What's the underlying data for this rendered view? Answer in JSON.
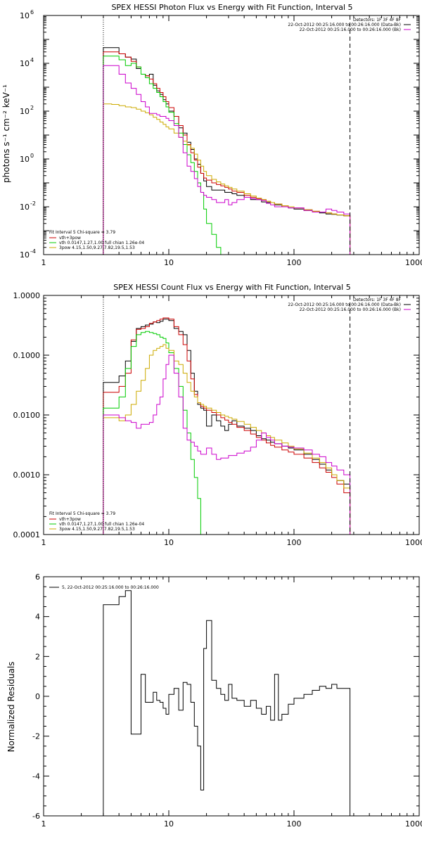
{
  "chart_data": [
    {
      "type": "line",
      "title": "SPEX HESSI Photon Flux vs Energy with Fit Function, Interval 5",
      "xlabel": "",
      "ylabel": "photons s⁻¹ cm⁻² keV⁻¹",
      "xscale": "log",
      "yscale": "log",
      "xlim": [
        1,
        1000
      ],
      "ylim": [
        0.0001,
        1000000
      ],
      "xticks": [
        1,
        10,
        100,
        1000
      ],
      "xtick_labels": [
        "1",
        "10",
        "100",
        "1000"
      ],
      "yticks": [
        0.0001,
        0.01,
        1,
        100,
        10000,
        1000000
      ],
      "ytick_labels": [
        {
          "base": "10",
          "exp": "-4"
        },
        {
          "base": "10",
          "exp": "-2"
        },
        {
          "base": "10",
          "exp": "0"
        },
        {
          "base": "10",
          "exp": "2"
        },
        {
          "base": "10",
          "exp": "4"
        },
        {
          "base": "10",
          "exp": "6"
        }
      ],
      "grid": false,
      "vlines": [
        {
          "x": 3,
          "style": "dotted"
        },
        {
          "x": 280,
          "style": "dashed"
        }
      ],
      "legend_top_right": [
        "Detectors: 1F 3F 4F 8F",
        "22-Oct-2012 00:25:16.000 to 00:26:16.000 (Data-Bk)",
        "22-Oct-2012 00:25:16.000 to 00:26:16.000 (Bk)"
      ],
      "legend_bottom_left": [
        "Fit Interval 5   Chi-square = 3.79",
        "vth+3pow",
        "vth 0.0147,1.27,1.00  full chian 1.26e-04",
        "3pow 4.15,1.50,9.27,7.82,19.5,1.53"
      ],
      "energy_edges": [
        3,
        3.5,
        4,
        4.5,
        5,
        5.5,
        6,
        6.5,
        7,
        7.5,
        8,
        8.5,
        9,
        9.5,
        10,
        11,
        12,
        13,
        14,
        15,
        16,
        17,
        18,
        19,
        20,
        22,
        24,
        26,
        28,
        30,
        32,
        35,
        40,
        45,
        50,
        55,
        60,
        65,
        70,
        80,
        90,
        100,
        120,
        140,
        160,
        180,
        200,
        220,
        250,
        280
      ],
      "series": [
        {
          "name": "Data-Bk",
          "color": "#000000",
          "values": [
            45000,
            45000,
            25000,
            18000,
            15000,
            6000,
            3500,
            3000,
            3500,
            1200,
            700,
            500,
            300,
            200,
            100,
            60,
            20,
            12,
            5,
            2.5,
            1.0,
            0.6,
            0.25,
            0.12,
            0.07,
            0.05,
            0.05,
            0.05,
            0.04,
            0.04,
            0.035,
            0.03,
            0.025,
            0.02,
            0.02,
            0.016,
            0.015,
            0.015,
            0.012,
            0.01,
            0.009,
            0.008,
            0.007,
            0.006,
            0.0055,
            0.005,
            0.0048,
            0.0045,
            0.0042
          ]
        },
        {
          "name": "vth+3pow",
          "color": "#cc0000",
          "values": [
            30000,
            30000,
            25000,
            18000,
            12000,
            7000,
            3500,
            3000,
            2200,
            1400,
            900,
            600,
            400,
            250,
            140,
            60,
            25,
            10,
            4,
            1.8,
            0.9,
            0.45,
            0.25,
            0.16,
            0.13,
            0.1,
            0.085,
            0.075,
            0.065,
            0.055,
            0.045,
            0.04,
            0.03,
            0.025,
            0.022,
            0.02,
            0.017,
            0.015,
            0.013,
            0.011,
            0.01,
            0.009,
            0.0075,
            0.0065,
            0.006,
            0.0055,
            0.005,
            0.0046,
            0.0042
          ]
        },
        {
          "name": "vth",
          "color": "#00cc00",
          "values": [
            20000,
            20000,
            14000,
            8000,
            10000,
            7000,
            3500,
            2500,
            1400,
            900,
            600,
            400,
            250,
            150,
            90,
            30,
            12,
            4,
            1.5,
            0.7,
            0.3,
            0.1,
            0.04,
            0.008,
            0.002,
            0.0007,
            0.0002,
            0.0001,
            0.0001,
            0.0001,
            0.0001,
            0.0001,
            0.0001,
            0.0001,
            0.0001,
            0.0001,
            0.0001,
            0.0001,
            0.0001,
            0.0001,
            0.0001,
            0.0001,
            0.0001,
            0.0001,
            0.0001,
            0.0001,
            0.0001,
            0.0001,
            0.0001
          ]
        },
        {
          "name": "3pow",
          "color": "#ccaa00",
          "values": [
            200,
            190,
            170,
            150,
            140,
            120,
            100,
            85,
            70,
            55,
            45,
            35,
            28,
            22,
            18,
            12,
            8,
            5.5,
            3.8,
            2.8,
            1.6,
            0.9,
            0.5,
            0.3,
            0.2,
            0.14,
            0.11,
            0.09,
            0.075,
            0.065,
            0.055,
            0.045,
            0.035,
            0.028,
            0.023,
            0.02,
            0.017,
            0.015,
            0.013,
            0.011,
            0.01,
            0.009,
            0.0075,
            0.0065,
            0.006,
            0.0055,
            0.005,
            0.0046,
            0.0042
          ]
        },
        {
          "name": "Bk",
          "color": "#cc00cc",
          "values": [
            8000,
            8000,
            3500,
            1500,
            900,
            500,
            250,
            150,
            80,
            80,
            70,
            60,
            60,
            50,
            40,
            25,
            8,
            1.8,
            0.5,
            0.3,
            0.15,
            0.07,
            0.04,
            0.03,
            0.025,
            0.02,
            0.015,
            0.015,
            0.02,
            0.012,
            0.015,
            0.02,
            0.025,
            0.022,
            0.02,
            0.018,
            0.014,
            0.012,
            0.01,
            0.01,
            0.009,
            0.009,
            0.007,
            0.006,
            0.006,
            0.008,
            0.007,
            0.006,
            0.005
          ]
        }
      ]
    },
    {
      "type": "line",
      "title": "SPEX HESSI Count Flux vs Energy with Fit Function, Interval 5",
      "xlabel": "",
      "ylabel": "",
      "xscale": "log",
      "yscale": "log",
      "xlim": [
        1,
        1000
      ],
      "ylim": [
        0.0001,
        1.0
      ],
      "xticks": [
        1,
        10,
        100,
        1000
      ],
      "xtick_labels": [
        "1",
        "10",
        "100",
        "1000"
      ],
      "yticks": [
        0.0001,
        0.001,
        0.01,
        0.1,
        1.0
      ],
      "ytick_labels": [
        "0.0001",
        "0.0010",
        "0.0100",
        "0.1000",
        "1.0000"
      ],
      "grid": false,
      "vlines": [
        {
          "x": 3,
          "style": "dotted"
        },
        {
          "x": 280,
          "style": "dashed"
        }
      ],
      "legend_top_right": [
        "Detectors: 1F 3F 4F 8F",
        "22-Oct-2012 00:25:16.000 to 00:26:16.000 (Data-Bk)",
        "22-Oct-2012 00:25:16.000 to 00:26:16.000 (Bk)"
      ],
      "legend_bottom_left": [
        "Fit Interval 5   Chi-square = 3.79",
        "vth+3pow",
        "vth 0.0147,1.27,1.00  full chian 1.26e-04",
        "3pow 4.15,1.50,9.27,7.82,19.5,1.53"
      ],
      "energy_edges": [
        3,
        3.5,
        4,
        4.5,
        5,
        5.5,
        6,
        6.5,
        7,
        7.5,
        8,
        8.5,
        9,
        9.5,
        10,
        11,
        12,
        13,
        14,
        15,
        16,
        17,
        18,
        19,
        20,
        22,
        24,
        26,
        28,
        30,
        32,
        35,
        40,
        45,
        50,
        55,
        60,
        65,
        70,
        80,
        90,
        100,
        120,
        140,
        160,
        180,
        200,
        220,
        250,
        280
      ],
      "series": [
        {
          "name": "Data-Bk",
          "color": "#000000",
          "values": [
            0.035,
            0.035,
            0.045,
            0.08,
            0.17,
            0.28,
            0.3,
            0.32,
            0.33,
            0.36,
            0.35,
            0.37,
            0.4,
            0.4,
            0.38,
            0.28,
            0.25,
            0.22,
            0.12,
            0.05,
            0.025,
            0.015,
            0.013,
            0.012,
            0.0065,
            0.01,
            0.008,
            0.0065,
            0.0055,
            0.007,
            0.008,
            0.0065,
            0.006,
            0.0055,
            0.0045,
            0.004,
            0.0038,
            0.0035,
            0.0033,
            0.003,
            0.0028,
            0.0026,
            0.0022,
            0.0018,
            0.0015,
            0.0012,
            0.001,
            0.0008,
            0.0007
          ]
        },
        {
          "name": "vth+3pow",
          "color": "#cc0000",
          "values": [
            0.024,
            0.024,
            0.03,
            0.05,
            0.18,
            0.27,
            0.28,
            0.3,
            0.34,
            0.36,
            0.38,
            0.4,
            0.42,
            0.42,
            0.4,
            0.3,
            0.22,
            0.15,
            0.08,
            0.04,
            0.022,
            0.016,
            0.014,
            0.013,
            0.012,
            0.011,
            0.01,
            0.009,
            0.0082,
            0.0075,
            0.007,
            0.0062,
            0.0055,
            0.0048,
            0.0042,
            0.0038,
            0.0034,
            0.0031,
            0.0029,
            0.0026,
            0.0024,
            0.0022,
            0.0019,
            0.0016,
            0.0013,
            0.0011,
            0.0009,
            0.0007,
            0.0005
          ]
        },
        {
          "name": "vth",
          "color": "#00cc00",
          "values": [
            0.013,
            0.013,
            0.02,
            0.06,
            0.14,
            0.22,
            0.24,
            0.25,
            0.24,
            0.23,
            0.22,
            0.2,
            0.19,
            0.16,
            0.11,
            0.06,
            0.03,
            0.012,
            0.005,
            0.0018,
            0.0009,
            0.0004,
            0.0001,
            0.0001,
            0.0001,
            0.0001,
            0.0001,
            0.0001,
            0.0001,
            0.0001,
            0.0001,
            0.0001,
            0.0001,
            0.0001,
            0.0001,
            0.0001,
            0.0001,
            0.0001,
            0.0001,
            0.0001,
            0.0001,
            0.0001,
            0.0001,
            0.0001,
            0.0001,
            0.0001,
            0.0001,
            0.0001,
            0.0001
          ]
        },
        {
          "name": "3pow",
          "color": "#ccaa00",
          "values": [
            0.009,
            0.009,
            0.008,
            0.01,
            0.015,
            0.025,
            0.038,
            0.06,
            0.1,
            0.12,
            0.13,
            0.14,
            0.15,
            0.13,
            0.12,
            0.08,
            0.07,
            0.05,
            0.035,
            0.025,
            0.02,
            0.016,
            0.015,
            0.014,
            0.013,
            0.012,
            0.011,
            0.01,
            0.0095,
            0.009,
            0.0085,
            0.0078,
            0.007,
            0.0062,
            0.0055,
            0.005,
            0.0045,
            0.0042,
            0.0038,
            0.0034,
            0.003,
            0.0027,
            0.0023,
            0.0019,
            0.0016,
            0.0013,
            0.001,
            0.0008,
            0.0006
          ]
        },
        {
          "name": "Bk",
          "color": "#cc00cc",
          "values": [
            0.01,
            0.01,
            0.009,
            0.008,
            0.0075,
            0.006,
            0.007,
            0.007,
            0.0075,
            0.01,
            0.015,
            0.02,
            0.04,
            0.07,
            0.1,
            0.05,
            0.02,
            0.006,
            0.0038,
            0.0035,
            0.003,
            0.0025,
            0.0022,
            0.0022,
            0.0028,
            0.0022,
            0.0018,
            0.0019,
            0.0019,
            0.0021,
            0.0021,
            0.0023,
            0.0025,
            0.0029,
            0.0038,
            0.005,
            0.0042,
            0.0038,
            0.0033,
            0.003,
            0.0029,
            0.0028,
            0.0026,
            0.0022,
            0.002,
            0.0016,
            0.0014,
            0.0012,
            0.001
          ]
        }
      ]
    },
    {
      "type": "line",
      "title": "",
      "xlabel": "",
      "ylabel": "Normalized Residuals",
      "xscale": "log",
      "yscale": "linear",
      "xlim": [
        1,
        1000
      ],
      "ylim": [
        -6,
        6
      ],
      "xticks": [
        1,
        10,
        100,
        1000
      ],
      "xtick_labels": [
        "1",
        "10",
        "100",
        "1000"
      ],
      "yticks": [
        -6,
        -4,
        -2,
        0,
        2,
        4,
        6
      ],
      "ytick_labels": [
        "-6",
        "-4",
        "-2",
        "0",
        "2",
        "4",
        "6"
      ],
      "grid": false,
      "legend_top_left": "5, 22-Oct-2012 00:25:16.000 to 00:26:16.000",
      "energy_edges": [
        3,
        4,
        4.5,
        5,
        5.5,
        6,
        6.5,
        7,
        7.5,
        8,
        8.5,
        9,
        9.5,
        10,
        11,
        12,
        13,
        14,
        15,
        16,
        17,
        18,
        19,
        20,
        22,
        24,
        26,
        28,
        30,
        32,
        35,
        40,
        45,
        50,
        55,
        60,
        65,
        70,
        75,
        80,
        90,
        100,
        120,
        140,
        160,
        180,
        200,
        220,
        250,
        280
      ],
      "series": [
        {
          "name": "5, 22-Oct-2012 00:25:16.000 to 00:26:16.000",
          "color": "#000000",
          "values": [
            4.6,
            5.0,
            5.3,
            -1.9,
            -1.9,
            1.1,
            -0.3,
            -0.3,
            0.2,
            -0.2,
            -0.3,
            -0.6,
            -0.9,
            0.1,
            0.4,
            -0.7,
            0.7,
            0.6,
            -0.3,
            -1.5,
            -2.5,
            -4.7,
            2.4,
            3.8,
            0.8,
            0.4,
            0.1,
            -0.2,
            0.6,
            -0.1,
            -0.2,
            -0.5,
            -0.2,
            -0.6,
            -0.9,
            -0.5,
            -1.2,
            1.1,
            -1.2,
            -0.9,
            -0.4,
            -0.1,
            0.1,
            0.3,
            0.5,
            0.4,
            0.6,
            0.4,
            0.4
          ]
        }
      ]
    }
  ]
}
